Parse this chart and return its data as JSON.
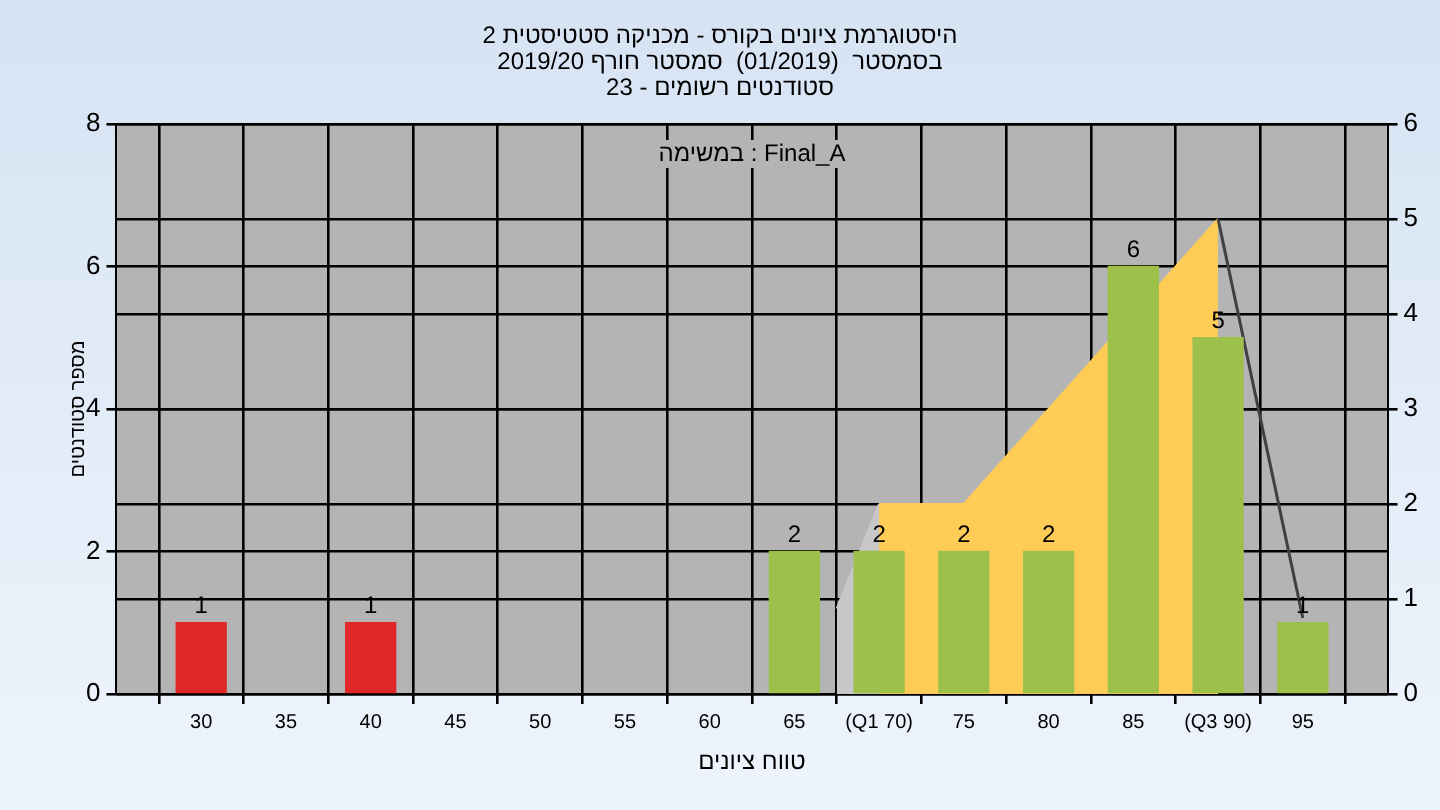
{
  "chart_data": {
    "type": "bar",
    "title": "היסטוגרמת ציונים בקורס - מכניקה סטטיסטית 2",
    "subtitle": "בסמסטר  (01/2019)  סמסטר חורף 2019/20\nסטודנטים רשומים - 23",
    "xlabel": "טווח ציונים",
    "ylabel": "מספר סטודנטים",
    "annotations": [
      "Final_A : במשימה"
    ],
    "series": [
      {
        "x": [
          30,
          40,
          65,
          70,
          75,
          80,
          85,
          90,
          95
        ],
        "values": [
          1,
          1,
          2,
          2,
          2,
          2,
          6,
          5,
          1
        ],
        "value_labels": [
          "1",
          "1",
          "2",
          "2",
          "2",
          "2",
          "6",
          "5",
          "1"
        ],
        "colors": [
          "#e02828",
          "#e02828",
          "#9cc04a",
          "#9cc04a",
          "#9cc04a",
          "#9cc04a",
          "#9cc04a",
          "#9cc04a",
          "#9cc04a"
        ]
      },
      {
        "type": "area",
        "axis": "y2",
        "x": [
          70,
          75,
          90
        ],
        "values": [
          2,
          2,
          5
        ],
        "color": "#ffcc55"
      },
      {
        "type": "area",
        "axis": "y2",
        "x": [
          67.5,
          70
        ],
        "values": [
          0.9,
          2
        ],
        "color": "#c8c8c8"
      },
      {
        "type": "line",
        "axis": "y2",
        "x": [
          90,
          95
        ],
        "values": [
          5,
          0.8
        ],
        "color": "#404040"
      }
    ],
    "xlim": [
      25,
      100
    ],
    "xticks": [
      {
        "value": 30,
        "label": "30"
      },
      35,
      40,
      45,
      50,
      55,
      60,
      65,
      {
        "value": 70,
        "label": "(Q1 70)"
      },
      75,
      80,
      85,
      {
        "value": 90,
        "label": "(Q3 90)"
      },
      95
    ],
    "ylim": [
      0,
      8
    ],
    "yticks": [
      0,
      2,
      4,
      6,
      8
    ],
    "y2lim": [
      0,
      6
    ],
    "y2ticks": [
      0,
      1,
      2,
      3,
      4,
      5,
      6
    ],
    "grid": true,
    "legend": false
  }
}
